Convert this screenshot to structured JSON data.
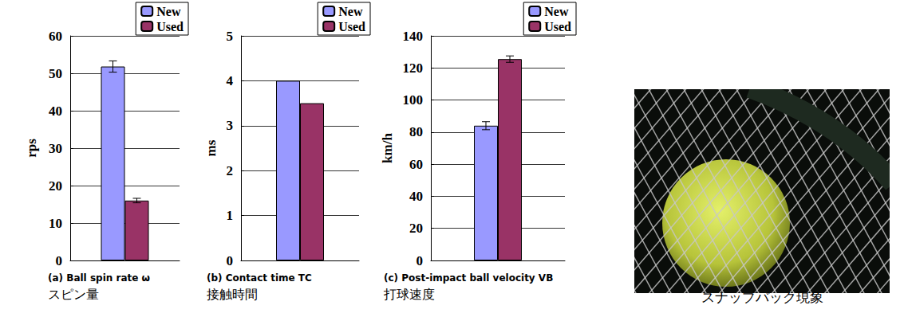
{
  "chart_data": [
    {
      "type": "bar",
      "title": "(a) Ball spin rate ω",
      "subtitle": "スピン量",
      "categories": [
        null
      ],
      "series": [
        {
          "name": "New",
          "color": "#9999ff",
          "values": [
            51.8
          ],
          "errors": [
            1.5
          ]
        },
        {
          "name": "Used",
          "color": "#993366",
          "values": [
            16
          ],
          "errors": [
            0.6
          ]
        }
      ],
      "y_label": "rps",
      "ylim": [
        0,
        60
      ],
      "yticks": [
        0,
        10,
        20,
        30,
        40,
        50,
        60
      ],
      "grid": true,
      "legend": "top-right",
      "tick_labels": "y"
    },
    {
      "type": "bar",
      "title": "(b) Contact time TC",
      "subtitle": "接触時間",
      "categories": [
        null
      ],
      "series": [
        {
          "name": "New",
          "color": "#9999ff",
          "values": [
            4.0
          ]
        },
        {
          "name": "Used",
          "color": "#993366",
          "values": [
            3.5
          ]
        }
      ],
      "y_label": "ms",
      "ylim": [
        0,
        5
      ],
      "yticks": [
        0,
        1,
        2,
        3,
        4,
        5
      ],
      "grid": true,
      "legend": "top-right",
      "tick_labels": "y"
    },
    {
      "type": "bar",
      "title": "(c) Post-impact ball velocity VB",
      "subtitle": "打球速度",
      "categories": [
        null
      ],
      "series": [
        {
          "name": "New",
          "color": "#9999ff",
          "values": [
            84
          ],
          "errors": [
            2.5
          ]
        },
        {
          "name": "Used",
          "color": "#993366",
          "values": [
            125.5
          ],
          "errors": [
            2
          ]
        }
      ],
      "y_label": "km/h",
      "ylim": [
        0,
        140
      ],
      "yticks": [
        0,
        20,
        40,
        60,
        80,
        100,
        120,
        140
      ],
      "grid": true,
      "legend": "top-right",
      "tick_labels": "y"
    }
  ],
  "image": {
    "caption": "スナップバック現象"
  }
}
